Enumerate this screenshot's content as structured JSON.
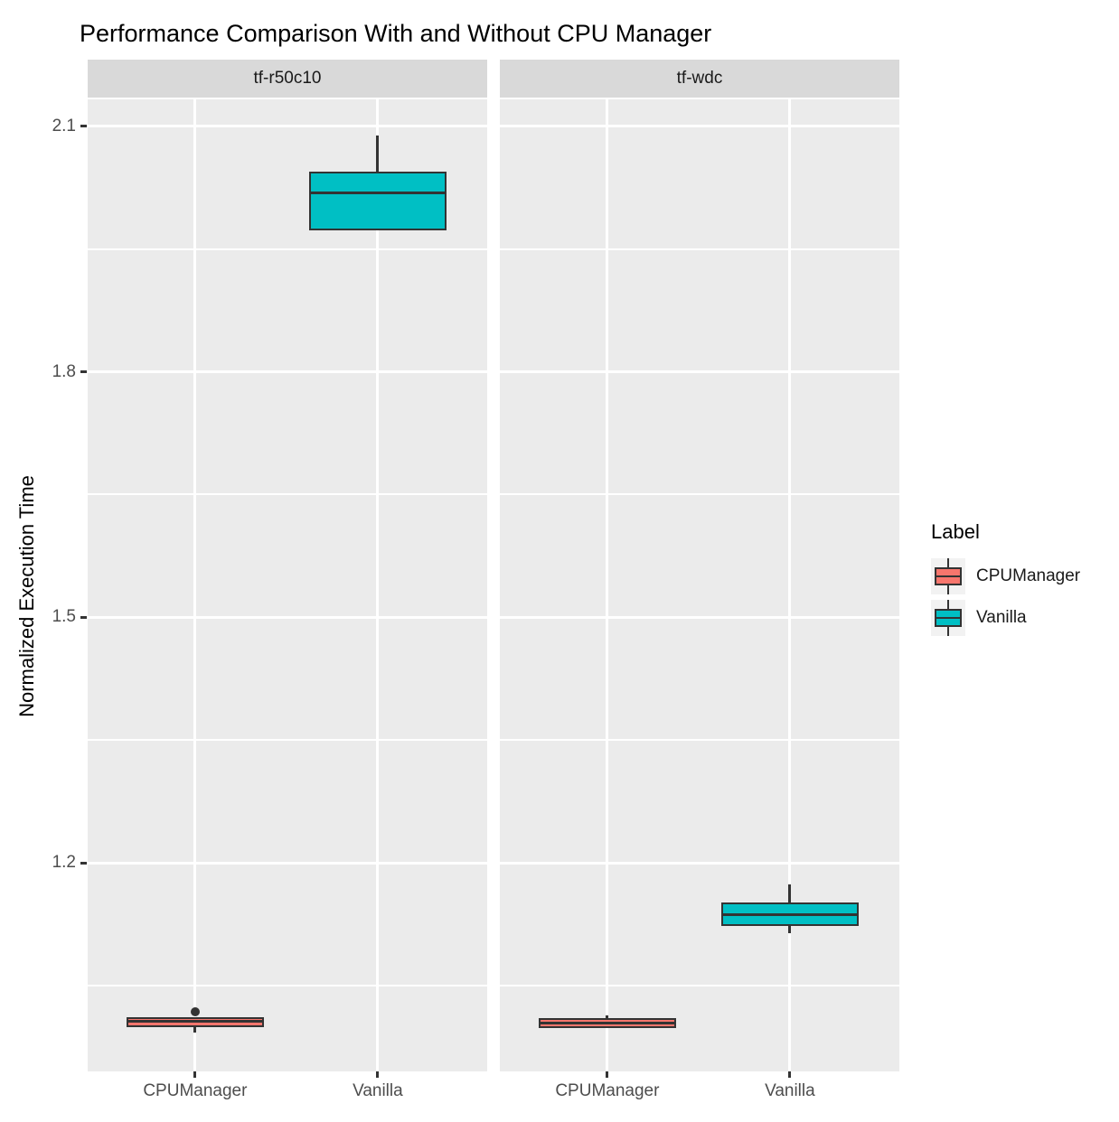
{
  "chart_data": {
    "type": "boxplot",
    "title": "Performance Comparison With and Without CPU Manager",
    "xlabel": "",
    "ylabel": "Normalized Execution Time",
    "ylim": [
      0.945,
      2.133
    ],
    "yticks_major": [
      1.2,
      1.5,
      1.8,
      2.1
    ],
    "yticks_minor": [
      1.05,
      1.35,
      1.65,
      1.95
    ],
    "categories": [
      "CPUManager",
      "Vanilla"
    ],
    "grid": true,
    "legend_position": "right",
    "legend": {
      "title": "Label",
      "entries": [
        {
          "label": "CPUManager",
          "color": "#F8766D"
        },
        {
          "label": "Vanilla",
          "color": "#00BFC4"
        }
      ]
    },
    "facets": [
      {
        "label": "tf-r50c10",
        "boxes": [
          {
            "group": "CPUManager",
            "color": "#F8766D",
            "lower_whisker": 0.992,
            "q1": 0.999,
            "median": 1.006,
            "q3": 1.011,
            "upper_whisker": 1.011,
            "outliers": [
              1.018
            ]
          },
          {
            "group": "Vanilla",
            "color": "#00BFC4",
            "lower_whisker": 1.973,
            "q1": 1.973,
            "median": 2.019,
            "q3": 2.045,
            "upper_whisker": 2.089,
            "outliers": []
          }
        ]
      },
      {
        "label": "tf-wdc",
        "boxes": [
          {
            "group": "CPUManager",
            "color": "#F8766D",
            "lower_whisker": 0.998,
            "q1": 0.998,
            "median": 1.004,
            "q3": 1.01,
            "upper_whisker": 1.013,
            "outliers": []
          },
          {
            "group": "Vanilla",
            "color": "#00BFC4",
            "lower_whisker": 1.114,
            "q1": 1.123,
            "median": 1.136,
            "q3": 1.151,
            "upper_whisker": 1.174,
            "outliers": []
          }
        ]
      }
    ]
  },
  "colors": {
    "panel_bg": "#EBEBEB",
    "strip_bg": "#D9D9D9",
    "grid": "#FFFFFF",
    "box_border": "#333333",
    "tick_text": "#4D4D4D",
    "cpumanager": "#F8766D",
    "vanilla": "#00BFC4"
  }
}
